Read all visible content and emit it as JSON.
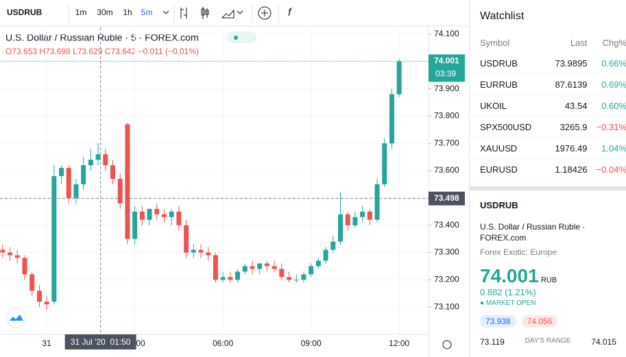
{
  "toolbar": {
    "symbol": "USDRUB",
    "intervals": [
      "1m",
      "30m",
      "1h",
      "5m"
    ]
  },
  "legend": {
    "title": "U.S. Dollar / Russian Ruble · 5 · FOREX.com",
    "ohlc": "O73.653 H73.698 L73.629 C73.642 −0.011 (−0.01%)"
  },
  "chart_data": {
    "type": "candlestick",
    "x": [
      -1.5,
      -1.25,
      -1.0,
      -0.75,
      -0.5,
      -0.25,
      0.0,
      0.25,
      0.5,
      0.75,
      1.0,
      1.25,
      1.5,
      1.75,
      2.0,
      2.25,
      2.5,
      2.75,
      3.0,
      3.25,
      3.5,
      3.75,
      4.0,
      4.25,
      4.5,
      4.75,
      5.0,
      5.25,
      5.5,
      5.75,
      6.0,
      6.25,
      6.5,
      6.75,
      7.0,
      7.25,
      7.5,
      7.75,
      8.0,
      8.25,
      8.5,
      8.75,
      9.0,
      9.25,
      9.5,
      9.75,
      10.0,
      10.25,
      10.5,
      10.75,
      11.0,
      11.25,
      11.5,
      11.75,
      12.0
    ],
    "open": [
      73.31,
      73.3,
      73.29,
      73.28,
      73.22,
      73.16,
      73.12,
      73.12,
      73.58,
      73.61,
      73.5,
      73.55,
      73.62,
      73.64,
      73.66,
      73.62,
      73.57,
      73.77,
      73.35,
      73.45,
      73.42,
      73.46,
      73.44,
      73.43,
      73.45,
      73.4,
      73.3,
      73.31,
      73.3,
      73.29,
      73.2,
      73.21,
      73.2,
      73.23,
      73.25,
      73.24,
      73.26,
      73.25,
      73.24,
      73.21,
      73.2,
      73.2,
      73.22,
      73.25,
      73.27,
      73.31,
      73.34,
      73.44,
      73.4,
      73.43,
      73.45,
      73.42,
      73.55,
      73.7,
      73.88
    ],
    "high": [
      73.33,
      73.32,
      73.31,
      73.29,
      73.23,
      73.18,
      73.14,
      73.62,
      73.62,
      73.62,
      73.57,
      73.65,
      73.68,
      73.7,
      73.68,
      73.64,
      73.59,
      73.775,
      73.47,
      73.47,
      73.46,
      73.48,
      73.46,
      73.46,
      73.47,
      73.42,
      73.33,
      73.33,
      73.32,
      73.3,
      73.23,
      73.23,
      73.24,
      73.26,
      73.27,
      73.26,
      73.27,
      73.27,
      73.26,
      73.23,
      73.22,
      73.23,
      73.26,
      73.28,
      73.32,
      73.36,
      73.52,
      73.45,
      73.45,
      73.47,
      73.46,
      73.57,
      73.72,
      73.9,
      74.01
    ],
    "low": [
      73.28,
      73.27,
      73.26,
      73.2,
      73.14,
      73.1,
      73.09,
      73.11,
      73.55,
      73.48,
      73.48,
      73.53,
      73.6,
      73.62,
      73.6,
      73.55,
      73.46,
      73.33,
      73.33,
      73.4,
      73.4,
      73.42,
      73.41,
      73.4,
      73.38,
      73.28,
      73.28,
      73.28,
      73.27,
      73.19,
      73.19,
      73.19,
      73.19,
      73.22,
      73.22,
      73.22,
      73.23,
      73.23,
      73.2,
      73.19,
      73.19,
      73.19,
      73.21,
      73.24,
      73.26,
      73.3,
      73.33,
      73.38,
      73.39,
      73.41,
      73.4,
      73.41,
      73.54,
      73.68,
      73.87
    ],
    "close": [
      73.3,
      73.29,
      73.28,
      73.22,
      73.16,
      73.12,
      73.11,
      73.58,
      73.61,
      73.5,
      73.55,
      73.62,
      73.64,
      73.66,
      73.62,
      73.57,
      73.48,
      73.35,
      73.45,
      73.42,
      73.46,
      73.44,
      73.43,
      73.45,
      73.4,
      73.3,
      73.31,
      73.3,
      73.29,
      73.2,
      73.21,
      73.2,
      73.23,
      73.25,
      73.24,
      73.26,
      73.25,
      73.24,
      73.21,
      73.2,
      73.2,
      73.22,
      73.25,
      73.27,
      73.31,
      73.34,
      73.44,
      73.4,
      73.43,
      73.45,
      73.42,
      73.55,
      73.7,
      73.88,
      74.001
    ],
    "up_color": "#26a69a",
    "down_color": "#ef5350",
    "xlim": [
      -1.59,
      13.0
    ],
    "xticks": [
      {
        "value": 0,
        "label": "31"
      },
      {
        "value": 3,
        "label": "03:00"
      },
      {
        "value": 6,
        "label": "06:00"
      },
      {
        "value": 9,
        "label": "09:00"
      },
      {
        "value": 12,
        "label": "12:00"
      }
    ],
    "ylim": [
      73.0,
      74.125
    ],
    "yticks": [
      {
        "value": 73.1,
        "label": "73.100"
      },
      {
        "value": 73.2,
        "label": "73.200"
      },
      {
        "value": 73.3,
        "label": "73.300"
      },
      {
        "value": 73.4,
        "label": "73.400"
      },
      {
        "value": 73.5,
        "label": "73.500"
      },
      {
        "value": 73.6,
        "label": "73.600"
      },
      {
        "value": 73.7,
        "label": "73.700"
      },
      {
        "value": 73.8,
        "label": "73.800"
      },
      {
        "value": 73.9,
        "label": "73.900"
      },
      {
        "value": 74.0,
        "label": "74.000"
      },
      {
        "value": 74.1,
        "label": "74.100"
      }
    ],
    "last_price": 74.001,
    "countdown": "03:39",
    "crosshair": {
      "x": 1.8333,
      "time_label": "31 Jul '20  01:50",
      "price": 73.498
    }
  },
  "watchlist": {
    "title": "Watchlist",
    "columns": [
      "Symbol",
      "Last",
      "Chg%"
    ],
    "rows": [
      [
        "USDRUB",
        "73.9895",
        "0.66%"
      ],
      [
        "EURRUB",
        "87.6139",
        "0.69%"
      ],
      [
        "UKOIL",
        "43.54",
        "0.60%"
      ],
      [
        "SPX500USD",
        "3265.9",
        "−0.31%"
      ],
      [
        "XAUUSD",
        "1976.49",
        "1.04%"
      ],
      [
        "EURUSD",
        "1.18426",
        "−0.04%"
      ]
    ]
  },
  "details": {
    "symbol": "USDRUB",
    "name": "U.S. Dollar / Russian Ruble · FOREX.com",
    "category": "Forex Exotic: Europe",
    "price": "74.001",
    "currency": "RUB",
    "change": "0.882 (1.21%)",
    "status": "MARKET OPEN",
    "bid": "73.938",
    "ask": "74.056",
    "range_low": "73.119",
    "range_label": "DAY'S RANGE",
    "range_high": "74.015"
  }
}
